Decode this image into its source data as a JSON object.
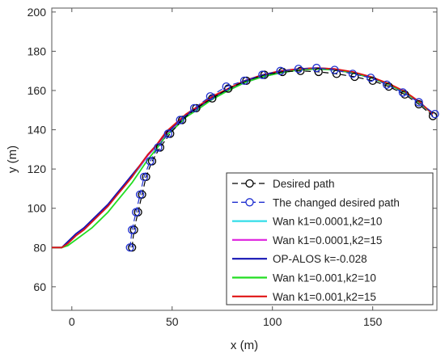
{
  "chart_data": {
    "type": "line",
    "xlabel": "x (m)",
    "ylabel": "y (m)",
    "xlim": [
      -10,
      182
    ],
    "ylim": [
      48,
      202
    ],
    "xticks": [
      0,
      50,
      100,
      150
    ],
    "yticks": [
      60,
      80,
      100,
      120,
      140,
      160,
      180,
      200
    ],
    "grid": false,
    "legend_position": "bottom-right",
    "series": [
      {
        "name": "Desired path",
        "color": "#000000",
        "dashed": true,
        "marker": "circle",
        "x": [
          30,
          31,
          33,
          35,
          37,
          40,
          44,
          49,
          55,
          62,
          70,
          78,
          87,
          96,
          105,
          114,
          123,
          132,
          141,
          150,
          158,
          166,
          173,
          180
        ],
        "y": [
          80,
          89,
          98,
          107,
          116,
          124,
          131,
          138,
          145,
          151,
          156,
          161,
          165,
          168,
          169.5,
          170,
          169.5,
          168.5,
          167,
          165,
          162,
          158,
          153,
          147
        ]
      },
      {
        "name": "The changed desired path",
        "color": "#1f2fd0",
        "dashed": true,
        "marker": "circle",
        "x": [
          29,
          30,
          32,
          34,
          36,
          39,
          43,
          48,
          54,
          61,
          69,
          77,
          86,
          95,
          104,
          113,
          122,
          131,
          140,
          149,
          157,
          165,
          173,
          181
        ],
        "y": [
          80,
          89,
          98,
          107,
          116,
          124,
          131,
          138,
          145,
          151,
          157,
          162,
          165,
          168,
          170,
          171,
          171.5,
          170.5,
          168.5,
          166.5,
          163,
          159,
          154,
          148
        ]
      },
      {
        "name": "Wan k1=0.0001,k2=10",
        "color": "#33dde8",
        "dashed": false,
        "x": [
          -10,
          -5,
          -2,
          2,
          6,
          10,
          14,
          18,
          22,
          26,
          30,
          34,
          38,
          42,
          47,
          52,
          57,
          63,
          70,
          78,
          86,
          95,
          104,
          113,
          122,
          131,
          140,
          149,
          158,
          166,
          173,
          180
        ],
        "y": [
          80,
          80,
          82,
          86,
          89,
          93,
          97,
          101,
          106,
          111,
          116,
          121,
          127,
          131,
          138,
          142,
          147,
          151,
          156,
          160,
          164,
          167,
          169,
          170.5,
          171,
          170.5,
          169,
          166.5,
          163,
          159,
          154,
          148
        ]
      },
      {
        "name": "Wan k1=0.0001,k2=15",
        "color": "#e02ce0",
        "dashed": false,
        "x": [
          -10,
          -5,
          -2,
          2,
          6,
          10,
          14,
          18,
          22,
          26,
          30,
          34,
          38,
          42,
          47,
          52,
          57,
          63,
          70,
          78,
          86,
          95,
          104,
          113,
          122,
          131,
          140,
          149,
          158,
          166,
          173,
          180
        ],
        "y": [
          80,
          80,
          82.5,
          86.5,
          89.5,
          93.5,
          97.5,
          101.5,
          106.5,
          111.5,
          116.5,
          121.5,
          127,
          131.5,
          138,
          142.5,
          147,
          151,
          156,
          160,
          164,
          167,
          169,
          170.5,
          171,
          170.5,
          169,
          166.5,
          163,
          159,
          154,
          148
        ]
      },
      {
        "name": "OP-ALOS k=-0.028",
        "color": "#1414b4",
        "dashed": false,
        "x": [
          -10,
          -5,
          -2,
          2,
          6,
          10,
          14,
          18,
          22,
          26,
          30,
          34,
          38,
          42,
          47,
          52,
          57,
          63,
          70,
          78,
          86,
          95,
          104,
          113,
          122,
          131,
          140,
          149,
          158,
          166,
          173,
          180
        ],
        "y": [
          80,
          80,
          83,
          87,
          90,
          94,
          98,
          102,
          107,
          112,
          117,
          122,
          127.5,
          132,
          138.5,
          143,
          147.5,
          151.5,
          156.5,
          160.5,
          164.5,
          167.5,
          169.5,
          171,
          171.5,
          171,
          169,
          166.5,
          163,
          159,
          154,
          148
        ]
      },
      {
        "name": "Wan k1=0.001,k2=10",
        "color": "#22dd22",
        "dashed": false,
        "x": [
          -10,
          -5,
          -2,
          2,
          6,
          10,
          14,
          18,
          22,
          26,
          30,
          34,
          38,
          42,
          47,
          52,
          57,
          63,
          70,
          78,
          86,
          95,
          104,
          113,
          122,
          131,
          140,
          149,
          158,
          166,
          173,
          180
        ],
        "y": [
          80,
          80,
          81,
          84,
          87,
          90,
          94,
          98,
          103,
          108,
          113,
          119,
          125,
          130,
          137,
          141.5,
          146.5,
          150.5,
          155.5,
          160,
          164,
          167,
          169,
          170.5,
          171,
          170.5,
          169,
          166.5,
          163,
          159,
          154,
          148
        ]
      },
      {
        "name": "Wan k1=0.001,k2=15",
        "color": "#e01414",
        "dashed": false,
        "x": [
          -10,
          -5,
          -2,
          2,
          6,
          10,
          14,
          18,
          22,
          26,
          30,
          34,
          38,
          42,
          47,
          52,
          57,
          63,
          70,
          78,
          86,
          95,
          104,
          113,
          122,
          131,
          140,
          149,
          158,
          166,
          173,
          180
        ],
        "y": [
          80,
          80,
          82,
          86,
          89,
          93,
          97,
          101,
          106,
          111,
          116,
          122,
          127.5,
          132,
          139,
          143.5,
          148,
          152,
          157,
          161,
          165,
          168,
          170,
          171,
          171.5,
          171,
          169.5,
          167,
          163.5,
          159.5,
          154.5,
          148
        ]
      }
    ]
  }
}
